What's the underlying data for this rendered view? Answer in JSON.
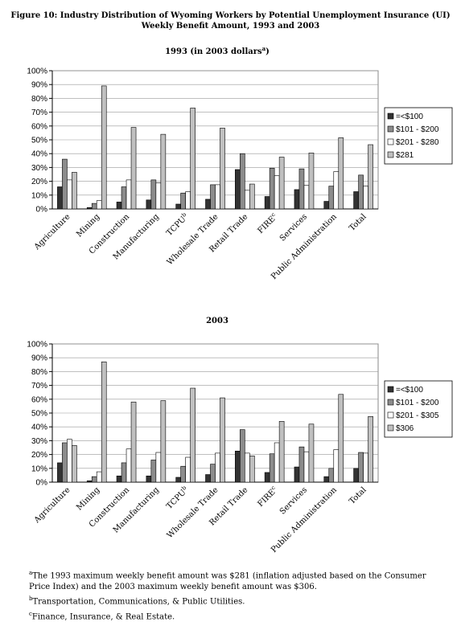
{
  "header": {
    "title_lines": [
      "Figure 10: Industry Distribution of Wyoming Workers by Potential Unemployment Insurance (UI)",
      "Weekly Benefit Amount, 1993 and 2003"
    ]
  },
  "chart_data": [
    {
      "type": "bar",
      "title": [
        "1993 (in 2003 dollars",
        "a",
        ")"
      ],
      "categories": [
        "Agriculture",
        "Mining",
        "Construction",
        "Manufacturing",
        "TCPU",
        "Wholesale Trade",
        "Retail Trade",
        "FIRE",
        "Services",
        "Public Administration",
        "Total"
      ],
      "category_notes": [
        null,
        null,
        null,
        null,
        "b",
        null,
        null,
        "c",
        null,
        null,
        null
      ],
      "series": [
        {
          "name": "=<$100",
          "color": "#333333",
          "values": [
            16,
            1,
            5,
            6.5,
            3.5,
            7,
            28.5,
            9,
            14,
            5.5,
            12.5
          ]
        },
        {
          "name": "$101 - $200",
          "color": "#8c8c8c",
          "values": [
            36,
            4,
            16,
            21,
            11.5,
            17.5,
            40,
            29.5,
            29,
            16.5,
            24.5
          ]
        },
        {
          "name": "$201 - $280",
          "color": "#ffffff",
          "values": [
            21,
            6,
            21,
            19,
            12.5,
            17.5,
            13.5,
            24,
            17,
            27,
            16.5
          ]
        },
        {
          "name": "$281",
          "color": "#c0c0c0",
          "values": [
            26.5,
            89,
            59,
            54,
            73,
            58.5,
            18,
            37.5,
            40.5,
            51.5,
            46.5
          ]
        }
      ],
      "ylim": [
        0,
        100
      ],
      "yticks": [
        {
          "value": 0,
          "label": "0%"
        },
        {
          "value": 10,
          "label": "10%"
        },
        {
          "value": 20,
          "label": "20%"
        },
        {
          "value": 30,
          "label": "30%"
        },
        {
          "value": 40,
          "label": "40%"
        },
        {
          "value": 50,
          "label": "50%"
        },
        {
          "value": 60,
          "label": "60%"
        },
        {
          "value": 70,
          "label": "70%"
        },
        {
          "value": 80,
          "label": "80%"
        },
        {
          "value": 90,
          "label": "90%"
        },
        {
          "value": 100,
          "label": "100%"
        }
      ],
      "grid": true,
      "legend": "right"
    },
    {
      "type": "bar",
      "title": [
        "2003"
      ],
      "categories": [
        "Agriculture",
        "Mining",
        "Construction",
        "Manufacturing",
        "TCPU",
        "Wholesale Trade",
        "Retail Trade",
        "FIRE",
        "Services",
        "Public Administration",
        "Total"
      ],
      "category_notes": [
        null,
        null,
        null,
        null,
        "b",
        null,
        null,
        "c",
        null,
        null,
        null
      ],
      "series": [
        {
          "name": "=<$100",
          "color": "#333333",
          "values": [
            14,
            1,
            4.5,
            4.5,
            3.5,
            5.5,
            22.5,
            7,
            11,
            4,
            10
          ]
        },
        {
          "name": "$101 - $200",
          "color": "#8c8c8c",
          "values": [
            28.5,
            4,
            14,
            16,
            11.5,
            13,
            38,
            20.5,
            25.5,
            10,
            21.5
          ]
        },
        {
          "name": "$201 - $305",
          "color": "#ffffff",
          "values": [
            31,
            7.5,
            24,
            21.5,
            18,
            21,
            21,
            28.5,
            22,
            23.5,
            21
          ]
        },
        {
          "name": "$306",
          "color": "#c0c0c0",
          "values": [
            26.5,
            87,
            58,
            59,
            68,
            61,
            19,
            44,
            42,
            63.5,
            47.5
          ]
        }
      ],
      "ylim": [
        0,
        100
      ],
      "yticks": [
        {
          "value": 0,
          "label": "0%"
        },
        {
          "value": 10,
          "label": "10%"
        },
        {
          "value": 20,
          "label": "20%"
        },
        {
          "value": 30,
          "label": "30%"
        },
        {
          "value": 40,
          "label": "40%"
        },
        {
          "value": 50,
          "label": "50%"
        },
        {
          "value": 60,
          "label": "60%"
        },
        {
          "value": 70,
          "label": "70%"
        },
        {
          "value": 80,
          "label": "80%"
        },
        {
          "value": 90,
          "label": "90%"
        },
        {
          "value": 100,
          "label": "100%"
        }
      ],
      "grid": true,
      "legend": "right"
    }
  ],
  "footnotes": [
    {
      "marker": "a",
      "text": "The 1993 maximum weekly benefit amount was $281 (inflation adjusted based on the Consumer Price Index) and the 2003 maximum weekly benefit amount was $306."
    },
    {
      "marker": "b",
      "text": "Transportation, Communications, & Public Utilities."
    },
    {
      "marker": "c",
      "text": "Finance, Insurance, & Real Estate."
    }
  ]
}
